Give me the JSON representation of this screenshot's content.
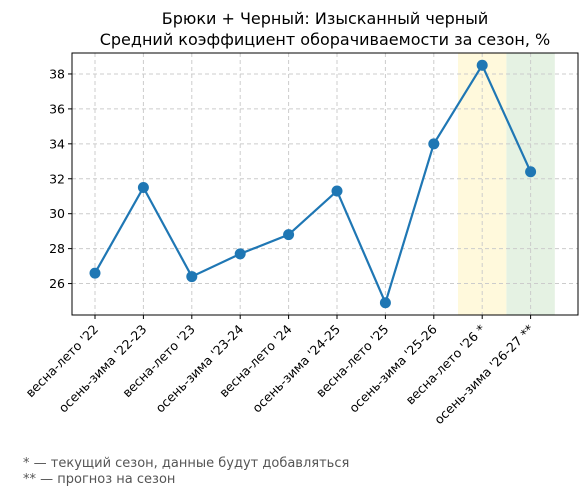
{
  "chart_data": {
    "type": "line",
    "title": [
      "Брюки + Черный: Изысканный черный",
      "Средний коэффициент оборачиваемости за сезон, %"
    ],
    "categories": [
      "весна-лето '22",
      "осень-зима '22-23",
      "весна-лето '23",
      "осень-зима '23-24",
      "весна-лето '24",
      "осень-зима '24-25",
      "весна-лето '25",
      "осень-зима '25-26",
      "весна-лето '26 *",
      "осень-зима '26-27 **"
    ],
    "values": [
      26.6,
      31.5,
      26.4,
      27.7,
      28.8,
      31.3,
      24.9,
      34.0,
      38.5,
      32.4
    ],
    "ylim": [
      24.2,
      39.2
    ],
    "yticks": [
      26,
      28,
      30,
      32,
      34,
      36,
      38
    ],
    "grid": true,
    "line_color": "#1f77b4",
    "highlights": [
      {
        "category_index": 8,
        "color": "#fff9dc"
      },
      {
        "category_index": 9,
        "color": "#e5f2e3"
      }
    ]
  },
  "footnotes": [
    "* — текущий сезон, данные будут добавляться",
    "** — прогноз на сезон"
  ]
}
